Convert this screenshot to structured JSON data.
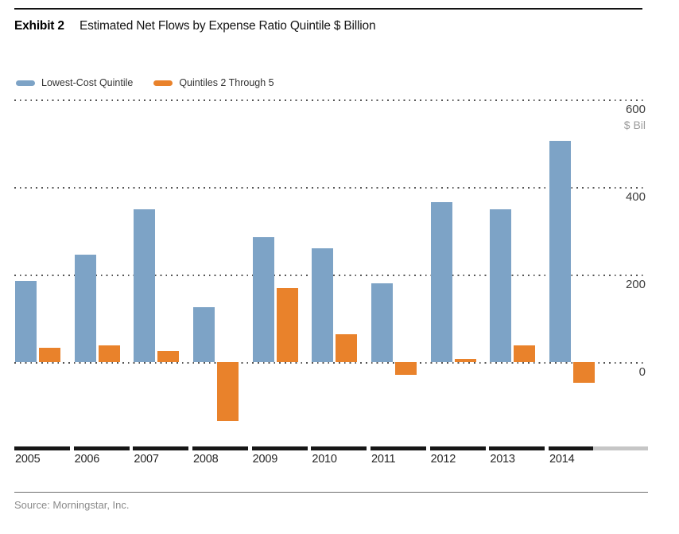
{
  "header": {
    "exhibit_label": "Exhibit 2",
    "title": "Estimated Net Flows by Expense Ratio Quintile $ Billion"
  },
  "legend": [
    {
      "label": "Lowest-Cost Quintile",
      "color": "#7DA3C6"
    },
    {
      "label": "Quintiles 2 Through 5",
      "color": "#E9822B"
    }
  ],
  "chart_data": {
    "type": "bar",
    "title": "Estimated Net Flows by Expense Ratio Quintile $ Billion",
    "categories": [
      "2005",
      "2006",
      "2007",
      "2008",
      "2009",
      "2010",
      "2011",
      "2012",
      "2013",
      "2014"
    ],
    "series": [
      {
        "name": "Lowest-Cost Quintile",
        "color": "#7DA3C6",
        "values": [
          185,
          245,
          350,
          125,
          285,
          260,
          180,
          365,
          350,
          505
        ]
      },
      {
        "name": "Quintiles 2 Through 5",
        "color": "#E9822B",
        "values": [
          33,
          38,
          25,
          -135,
          170,
          63,
          -29,
          7,
          38,
          -48
        ]
      }
    ],
    "xlabel": "",
    "ylabel": "$ Bil",
    "yticks": [
      600,
      400,
      200,
      0
    ],
    "ylim": [
      -160,
      620
    ],
    "grid": "dotted horizontal",
    "legend_position": "top-left"
  },
  "colors": {
    "blue_series": "#7DA3C6",
    "orange_series": "#E9822B",
    "axis_segment_black": "#161616",
    "axis_segment_gray": "#C6C6C6",
    "grid_dot": "#565656",
    "unit_gray": "#9C9C9C"
  },
  "source": "Source: Morningstar, Inc."
}
